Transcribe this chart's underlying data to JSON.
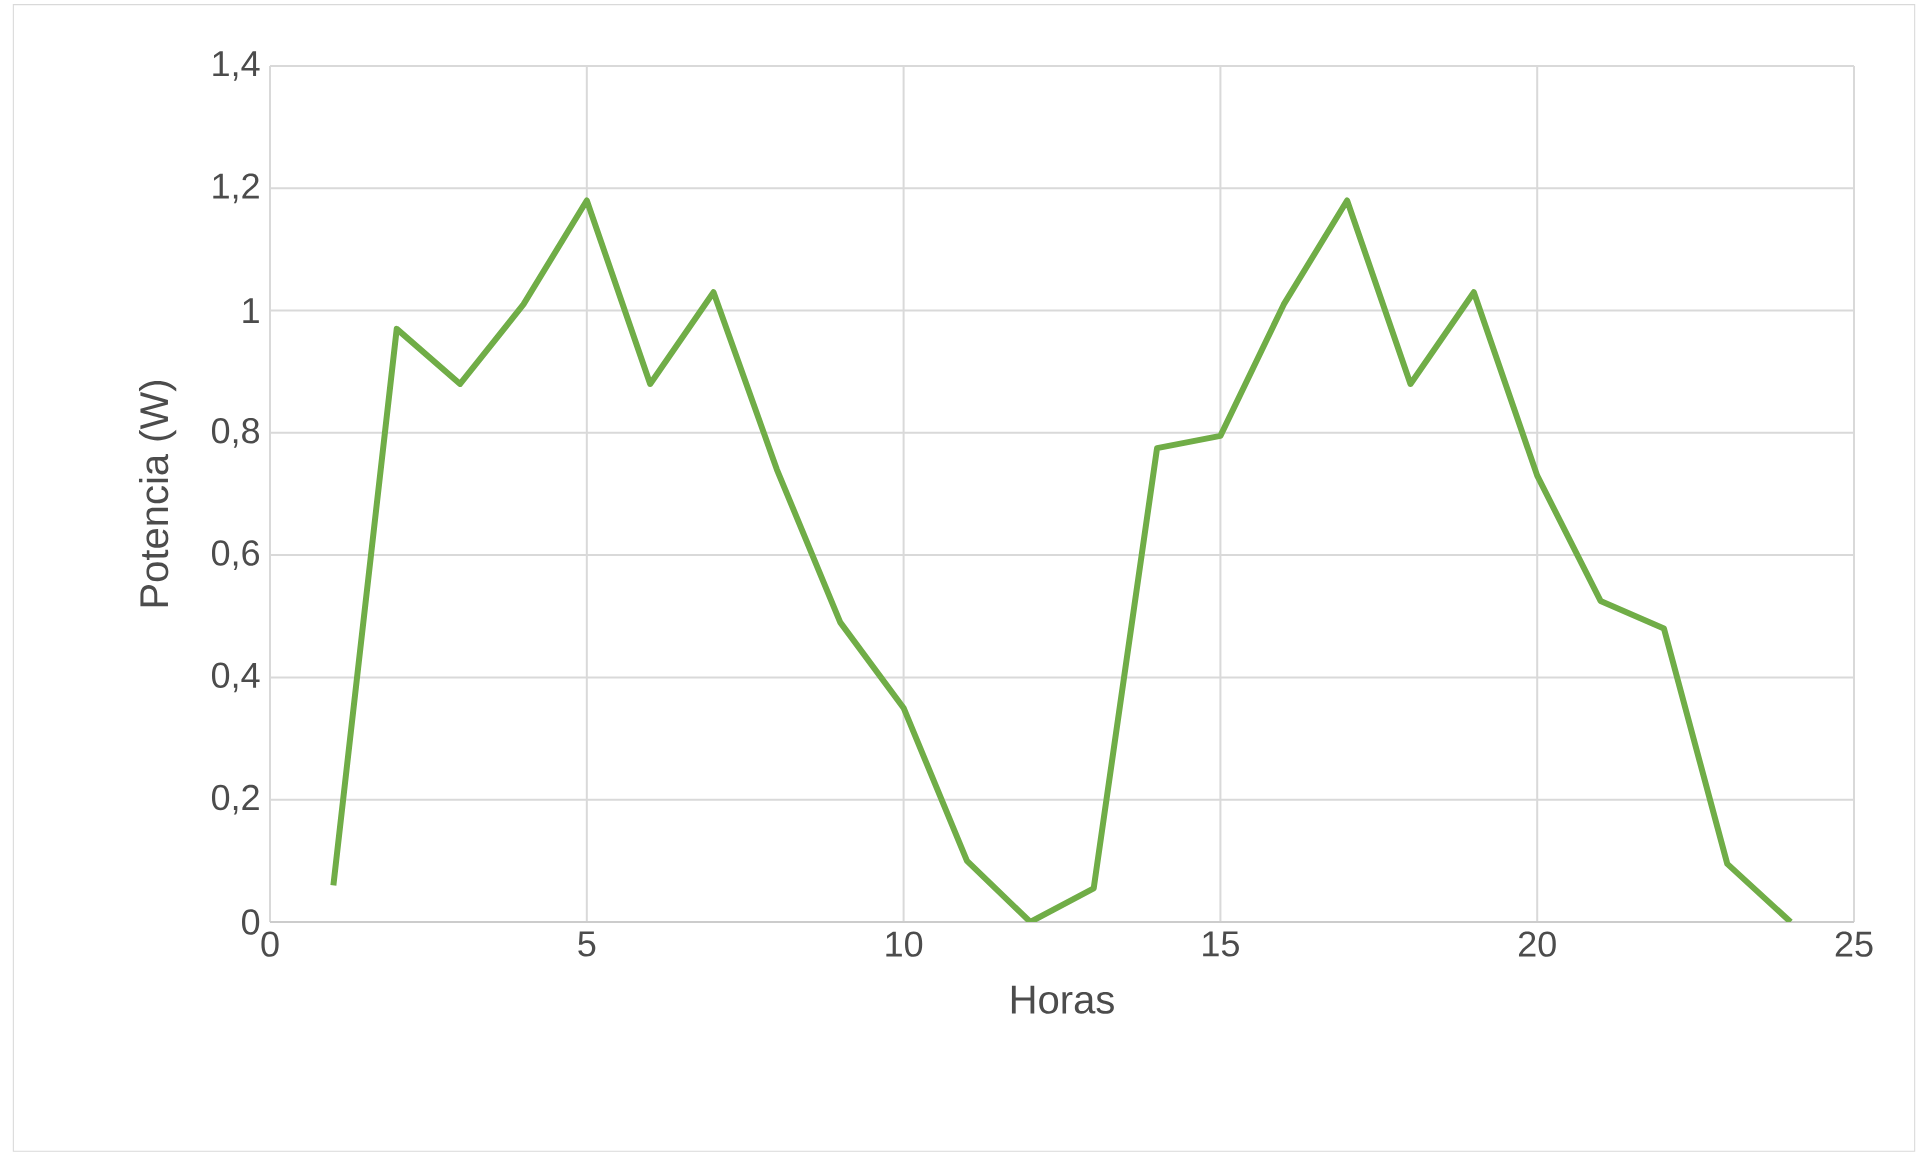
{
  "chart_data": {
    "type": "line",
    "xlabel": "Horas",
    "ylabel": "Potencia (W)",
    "x": [
      1,
      2,
      3,
      4,
      5,
      6,
      7,
      8,
      9,
      10,
      11,
      12,
      13,
      14,
      15,
      16,
      17,
      18,
      19,
      20,
      21,
      22,
      23,
      24
    ],
    "series": [
      {
        "color": "#70ad47",
        "values": [
          0.06,
          0.97,
          0.88,
          1.01,
          1.18,
          0.88,
          1.03,
          0.74,
          0.49,
          0.35,
          0.1,
          0,
          0.055,
          0.775,
          0.795,
          1.01,
          1.18,
          0.88,
          1.03,
          0.73,
          0.525,
          0.48,
          0.095,
          0
        ]
      }
    ],
    "xlim": [
      0,
      25
    ],
    "xticks": [
      0,
      5,
      10,
      15,
      20,
      25
    ],
    "ylim": [
      0,
      1.4
    ],
    "yticks": [
      0,
      {
        "value": 0.2,
        "label": "0,2"
      },
      {
        "value": 0.4,
        "label": "0,4"
      },
      {
        "value": 0.6,
        "label": "0,6"
      },
      {
        "value": 0.8,
        "label": "0,8"
      },
      {
        "value": 1,
        "label": "1"
      },
      {
        "value": 1.2,
        "label": "1,2"
      },
      {
        "value": 1.4,
        "label": "1,4"
      }
    ],
    "grid": true,
    "marker": "none",
    "line_style": "solid"
  }
}
